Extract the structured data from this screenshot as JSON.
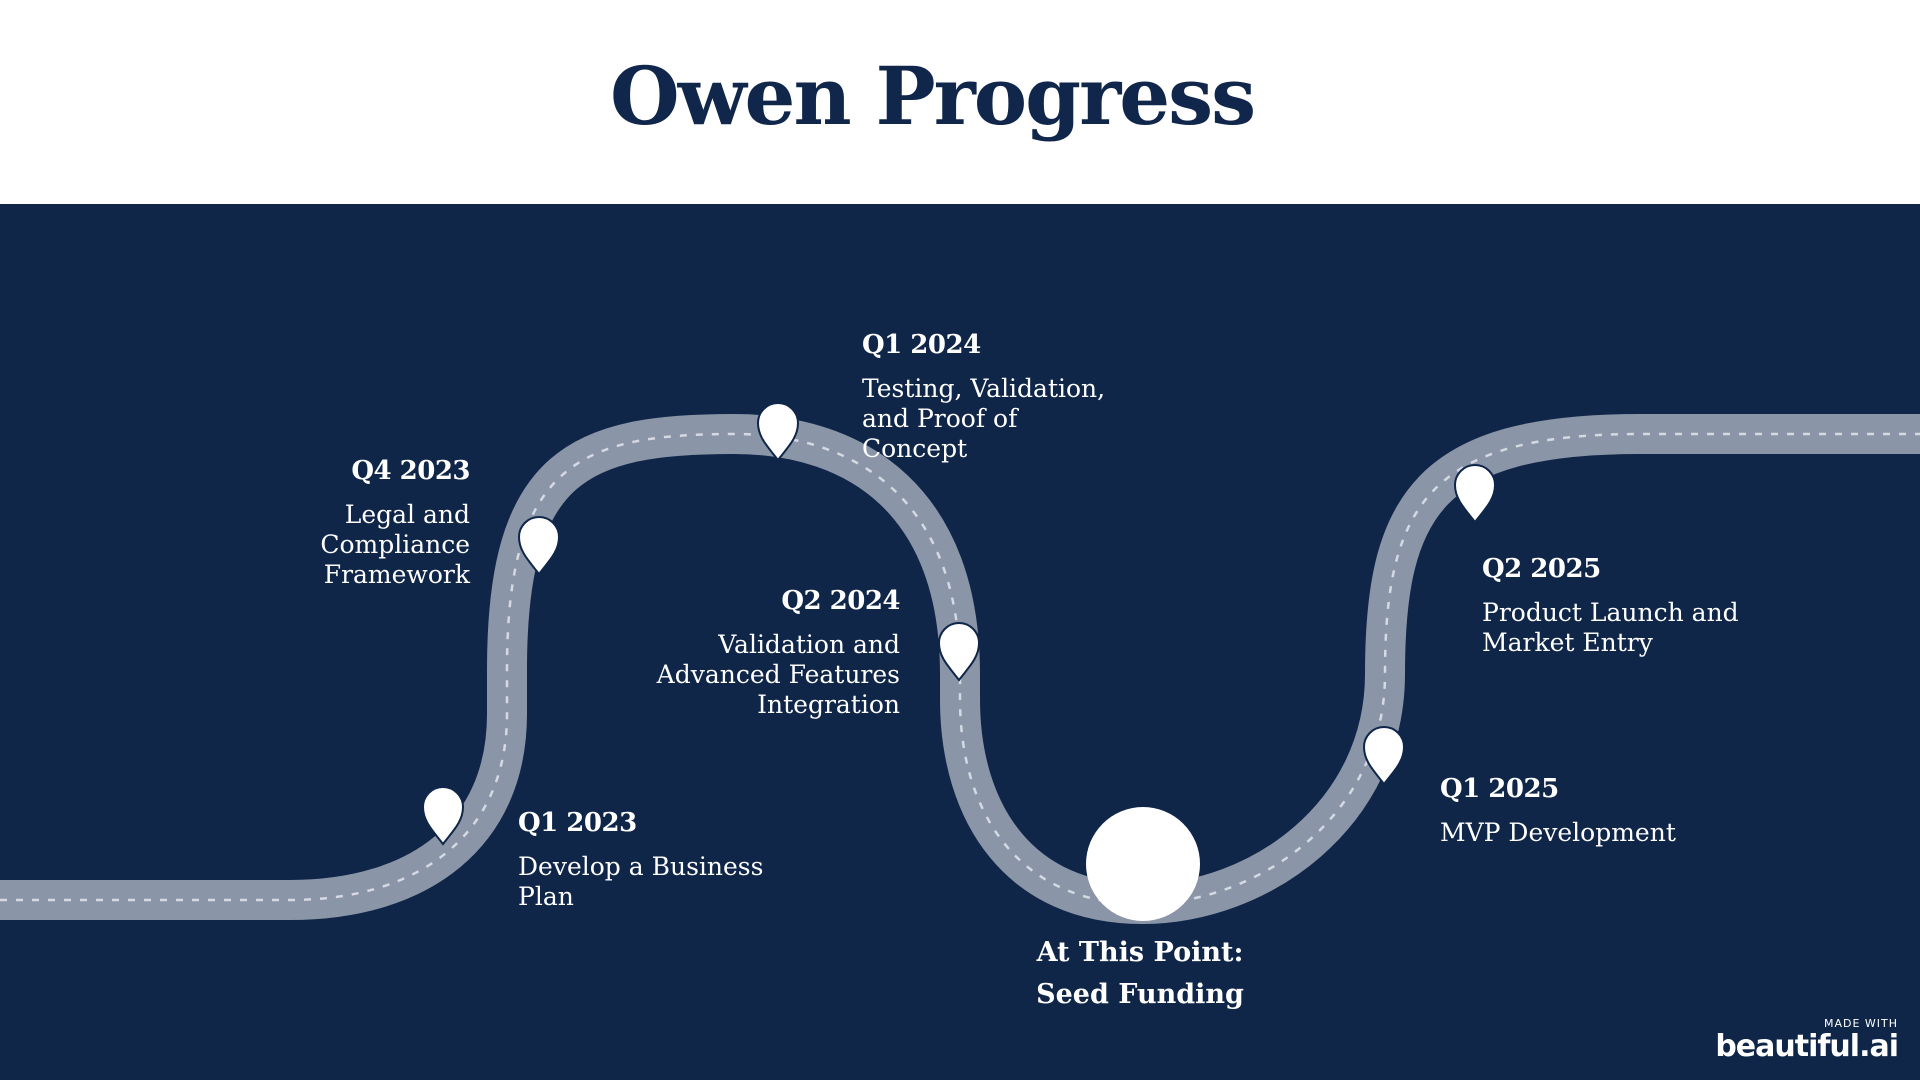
{
  "title": "Owen Progress",
  "colors": {
    "background": "#0f2649",
    "road": "#8b95a8",
    "title": "#10264b",
    "pin": "#ffffff"
  },
  "milestones": [
    {
      "date": "Q1 2023",
      "description": "Develop a Business Plan"
    },
    {
      "date": "Q4 2023",
      "description": "Legal and Compliance Framework"
    },
    {
      "date": "Q1 2024",
      "description": "Testing, Validation, and Proof of Concept"
    },
    {
      "date": "Q2 2024",
      "description": "Validation and Advanced Features Integration"
    },
    {
      "date": "Q1 2025",
      "description": "MVP Development"
    },
    {
      "date": "Q2 2025",
      "description": "Product Launch and Market Entry"
    }
  ],
  "current": {
    "line1": "At This Point:",
    "line2": "Seed Funding"
  },
  "logo": {
    "made_with": "MADE WITH",
    "brand": "beautiful.ai"
  },
  "icons": {
    "milestone": "map-pin-icon",
    "current": "current-position-marker"
  }
}
